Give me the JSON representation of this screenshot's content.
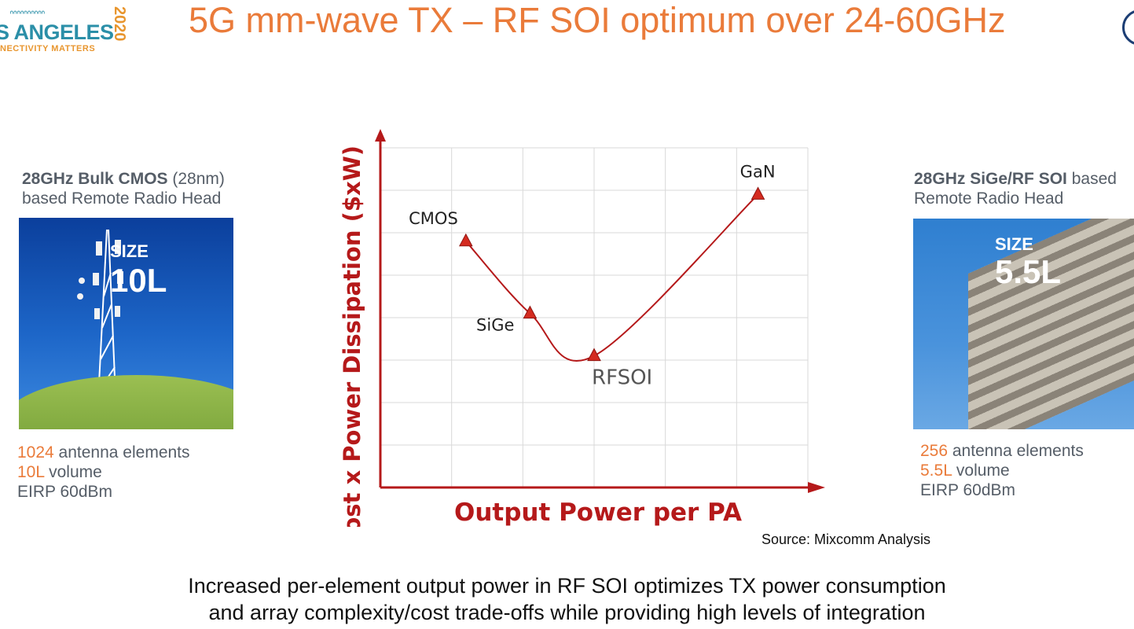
{
  "logo": {
    "waves": "ᐢᐢᐢᐢᐢᐢᐢᐢᐢᐢ",
    "city": "S ANGELES",
    "tagline": "NECTIVITY MATTERS",
    "year": "2020"
  },
  "title": "5G mm-wave TX – RF SOI optimum over 24-60GHz",
  "left_panel": {
    "heading_bold": "28GHz Bulk CMOS",
    "heading_rest": " (28nm)",
    "heading_line2": "based Remote Radio Head",
    "image_size_label": "SIZE",
    "image_size_value": "10L",
    "stats": [
      {
        "highlight": "1024",
        "text": " antenna elements"
      },
      {
        "highlight": "10L",
        "text": " volume"
      },
      {
        "highlight": "",
        "text": "EIRP 60dBm"
      }
    ]
  },
  "right_panel": {
    "heading_bold": "28GHz SiGe/RF SOI",
    "heading_rest": " based",
    "heading_line2": "Remote Radio Head",
    "image_size_label": "SIZE",
    "image_size_value": "5.5L",
    "stats": [
      {
        "highlight": "256",
        "text": " antenna elements"
      },
      {
        "highlight": "5.5L",
        "text": " volume"
      },
      {
        "highlight": "",
        "text": "EIRP 60dBm"
      }
    ]
  },
  "chart_data": {
    "type": "line",
    "xlabel": "Output Power per PA",
    "ylabel": "Cost x Power Dissipation ($xW)",
    "xlim": [
      0,
      6
    ],
    "ylim": [
      0,
      8
    ],
    "grid": true,
    "line_color": "#b5191a",
    "axis_color": "#b5191a",
    "points": [
      {
        "name": "CMOS",
        "x": 1.2,
        "y": 5.8
      },
      {
        "name": "SiGe",
        "x": 2.1,
        "y": 4.1
      },
      {
        "name": "RFSOI",
        "x": 3.0,
        "y": 3.1
      },
      {
        "name": "GaN",
        "x": 5.3,
        "y": 6.9
      }
    ]
  },
  "source": "Source: Mixcomm Analysis",
  "bottom": {
    "line1": "Increased per-element output power in RF SOI optimizes TX power consumption",
    "line2": "and array complexity/cost trade-offs while providing high levels of integration"
  }
}
